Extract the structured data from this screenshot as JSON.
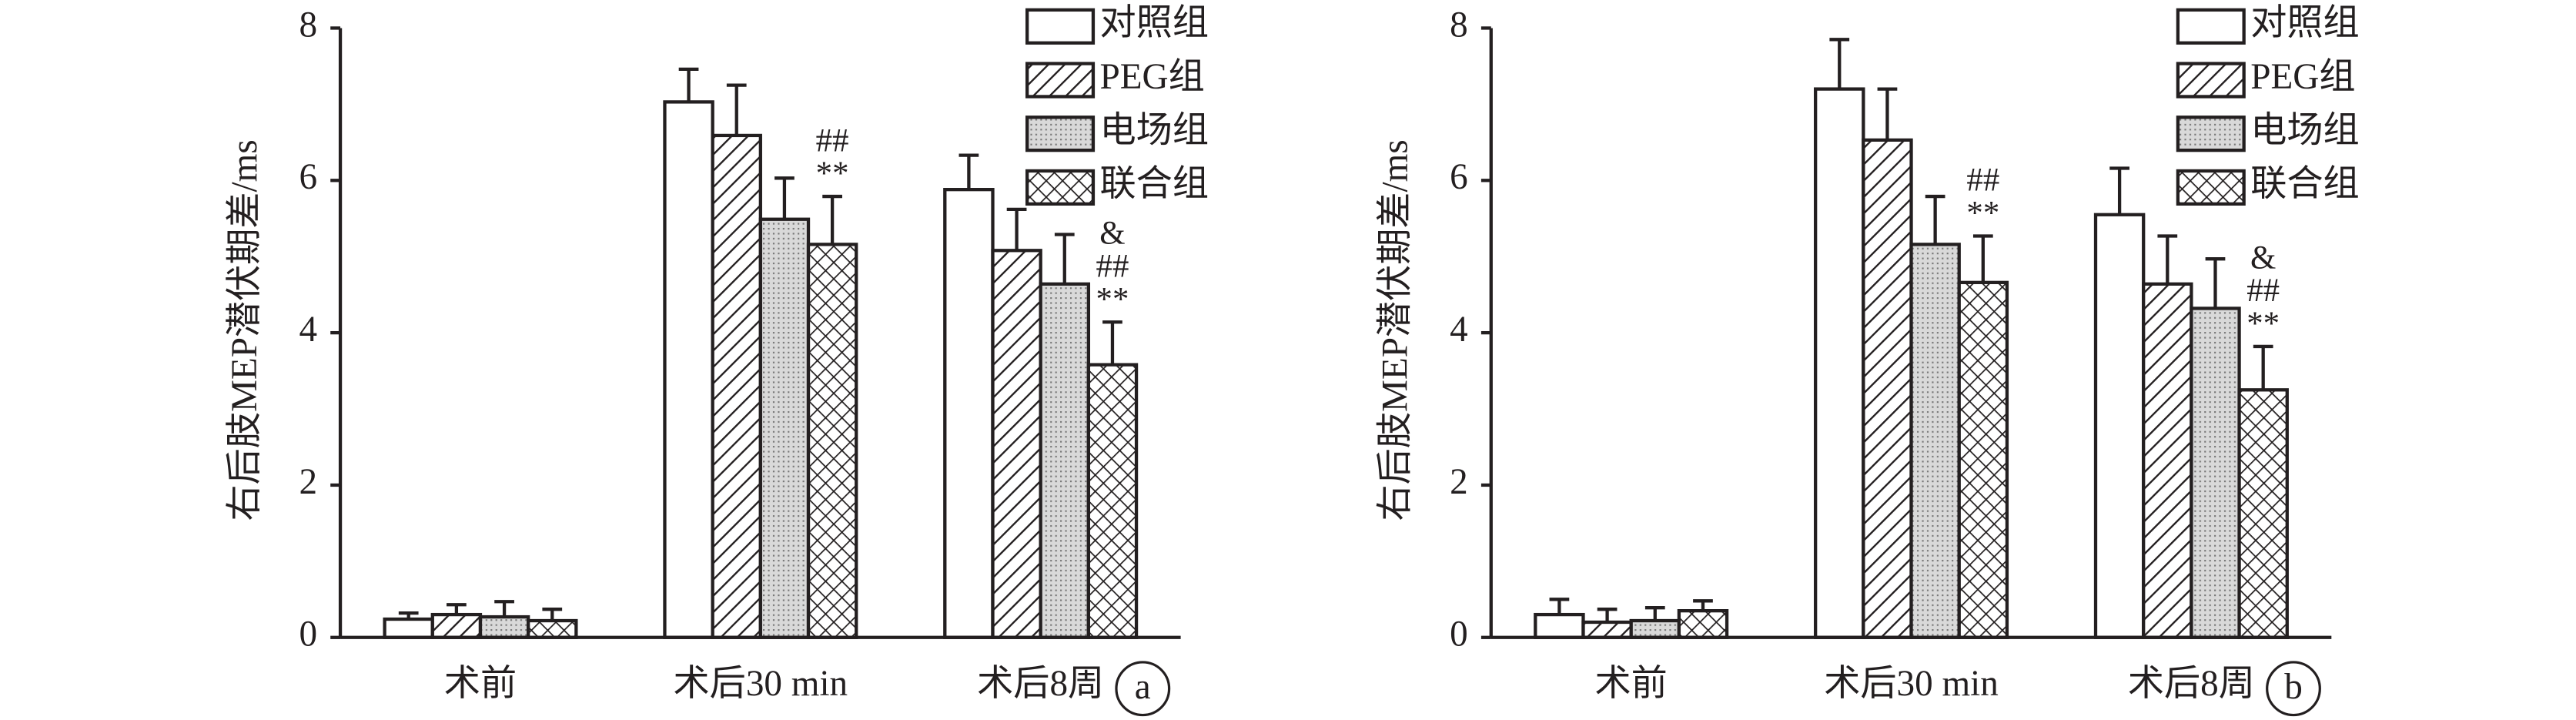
{
  "chart_data": [
    {
      "type": "bar",
      "ylabel": "右后肢MEP潜伏期差/ms",
      "panel_label": "a",
      "categories": [
        "术前",
        "术后30 min",
        "术后8周"
      ],
      "ylim": [
        0,
        8
      ],
      "yticks": [
        0,
        2,
        4,
        6,
        8
      ],
      "series": [
        {
          "name": "对照组",
          "pattern": "none",
          "values": [
            0.24,
            7.03,
            5.88
          ],
          "errors": [
            0.08,
            0.43,
            0.45
          ]
        },
        {
          "name": "PEG组",
          "pattern": "hatch",
          "values": [
            0.3,
            6.59,
            5.08
          ],
          "errors": [
            0.13,
            0.66,
            0.54
          ]
        },
        {
          "name": "电场组",
          "pattern": "dots",
          "values": [
            0.27,
            5.49,
            4.64
          ],
          "errors": [
            0.2,
            0.54,
            0.65
          ]
        },
        {
          "name": "联合组",
          "pattern": "cross",
          "values": [
            0.22,
            5.16,
            3.58
          ],
          "errors": [
            0.15,
            0.63,
            0.56
          ],
          "annotations": [
            null,
            [
              "##",
              "**"
            ],
            [
              "&",
              "##",
              "**"
            ]
          ]
        }
      ]
    },
    {
      "type": "bar",
      "ylabel": "右后肢MEP潜伏期差/ms",
      "panel_label": "b",
      "categories": [
        "术前",
        "术后30 min",
        "术后8周"
      ],
      "ylim": [
        0,
        8
      ],
      "yticks": [
        0,
        2,
        4,
        6,
        8
      ],
      "series": [
        {
          "name": "对照组",
          "pattern": "none",
          "values": [
            0.3,
            7.2,
            5.55
          ],
          "errors": [
            0.2,
            0.65,
            0.61
          ]
        },
        {
          "name": "PEG组",
          "pattern": "hatch",
          "values": [
            0.2,
            6.53,
            4.64
          ],
          "errors": [
            0.17,
            0.67,
            0.63
          ]
        },
        {
          "name": "电场组",
          "pattern": "dots",
          "values": [
            0.22,
            5.16,
            4.32
          ],
          "errors": [
            0.17,
            0.63,
            0.65
          ]
        },
        {
          "name": "联合组",
          "pattern": "cross",
          "values": [
            0.35,
            4.66,
            3.25
          ],
          "errors": [
            0.13,
            0.61,
            0.57
          ],
          "annotations": [
            null,
            [
              "##",
              "**"
            ],
            [
              "&",
              "##",
              "**"
            ]
          ]
        }
      ]
    }
  ]
}
